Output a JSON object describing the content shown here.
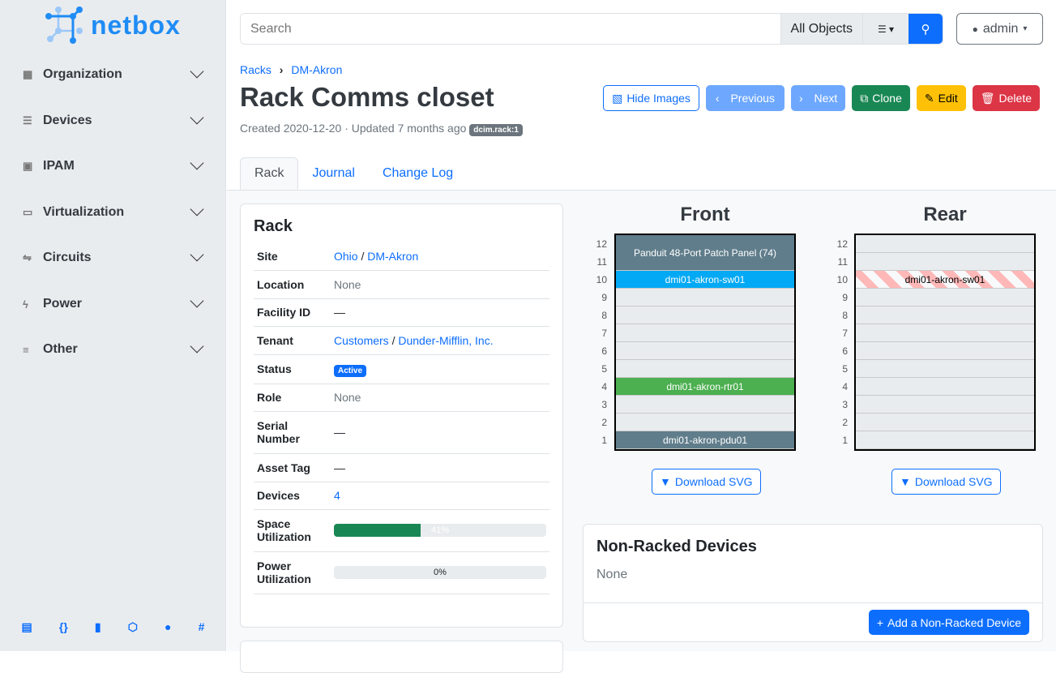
{
  "brand": {
    "name": "netbox"
  },
  "sidebar": {
    "items": [
      {
        "label": "Organization",
        "icon": "building-icon"
      },
      {
        "label": "Devices",
        "icon": "server-icon"
      },
      {
        "label": "IPAM",
        "icon": "ip-icon"
      },
      {
        "label": "Virtualization",
        "icon": "monitor-icon"
      },
      {
        "label": "Circuits",
        "icon": "circuit-icon"
      },
      {
        "label": "Power",
        "icon": "flash-icon"
      },
      {
        "label": "Other",
        "icon": "list-icon"
      }
    ],
    "footer_icons": [
      "book-icon",
      "api-icon",
      "docs-icon",
      "graphql-icon",
      "github-icon",
      "slack-icon"
    ]
  },
  "search": {
    "placeholder": "Search",
    "scope": "All Objects"
  },
  "user": {
    "name": "admin"
  },
  "breadcrumb": [
    "Racks",
    "DM-Akron"
  ],
  "page": {
    "title": "Rack Comms closet",
    "meta": "Created 2020-12-20 · Updated 7 months ago",
    "id_badge": "dcim.rack:1"
  },
  "actions": {
    "hide_images": "Hide Images",
    "previous": "Previous",
    "next": "Next",
    "clone": "Clone",
    "edit": "Edit",
    "delete": "Delete"
  },
  "tabs": [
    "Rack",
    "Journal",
    "Change Log"
  ],
  "rack_card": {
    "title": "Rack",
    "site": {
      "label": "Site",
      "region": "Ohio",
      "site": "DM-Akron"
    },
    "location": {
      "label": "Location",
      "value": "None"
    },
    "facility": {
      "label": "Facility ID",
      "value": "—"
    },
    "tenant": {
      "label": "Tenant",
      "group": "Customers",
      "tenant": "Dunder-Mifflin, Inc."
    },
    "status": {
      "label": "Status",
      "value": "Active"
    },
    "role": {
      "label": "Role",
      "value": "None"
    },
    "serial": {
      "label": "Serial Number",
      "value": "—"
    },
    "asset": {
      "label": "Asset Tag",
      "value": "—"
    },
    "devices": {
      "label": "Devices",
      "value": "4"
    },
    "space": {
      "label": "Space Utilization",
      "value": "41%",
      "percent": 41
    },
    "power": {
      "label": "Power Utilization",
      "value": "0%",
      "percent": 0
    }
  },
  "elevation": {
    "front_title": "Front",
    "rear_title": "Rear",
    "units": [
      "12",
      "11",
      "10",
      "9",
      "8",
      "7",
      "6",
      "5",
      "4",
      "3",
      "2",
      "1"
    ],
    "front_devices": [
      {
        "name": "Panduit 48-Port Patch Panel (74)",
        "top": 12,
        "height": 2,
        "color": "#607d8b"
      },
      {
        "name": "dmi01-akron-sw01",
        "top": 10,
        "height": 1,
        "color": "#03a9f4"
      },
      {
        "name": "dmi01-akron-rtr01",
        "top": 4,
        "height": 1,
        "color": "#4caf50"
      },
      {
        "name": "dmi01-akron-pdu01",
        "top": 1,
        "height": 1,
        "color": "#607d8b"
      }
    ],
    "rear_devices": [
      {
        "name": "dmi01-akron-sw01",
        "top": 10,
        "height": 1
      }
    ],
    "download": "Download SVG"
  },
  "non_racked": {
    "title": "Non-Racked Devices",
    "value": "None",
    "add": "Add a Non-Racked Device"
  }
}
